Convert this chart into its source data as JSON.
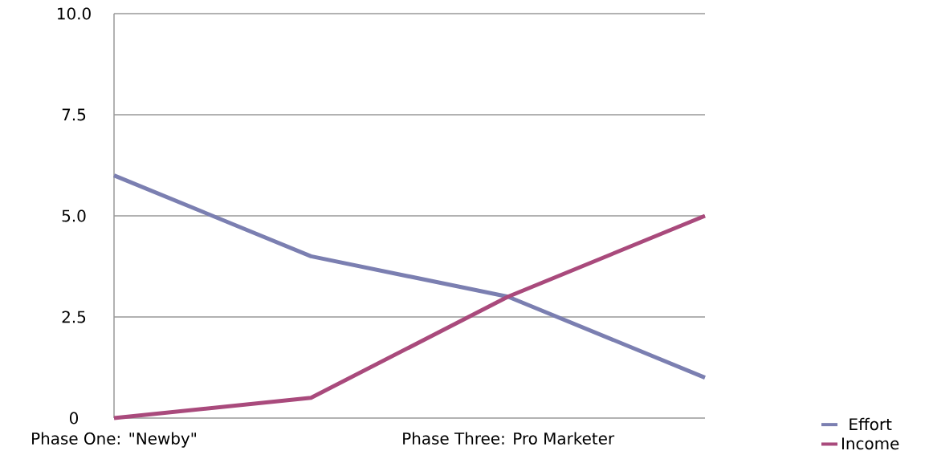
{
  "chart_data": {
    "type": "line",
    "categories": [
      "Phase One: \"Newby\"",
      null,
      "Phase Three: Pro Marketer",
      null
    ],
    "series": [
      {
        "name": "Effort",
        "color": "#7b7fb1",
        "values": [
          6,
          4,
          3,
          1
        ]
      },
      {
        "name": "Income",
        "color": "#a94a7c",
        "values": [
          0,
          0.5,
          3,
          5
        ]
      }
    ],
    "ylim": [
      0,
      10
    ],
    "yticks": [
      {
        "value": 0,
        "label": "0"
      },
      {
        "value": 2.5,
        "label": "2.5"
      },
      {
        "value": 5,
        "label": "5.0"
      },
      {
        "value": 7.5,
        "label": "7.5"
      },
      {
        "value": 10,
        "label": "10.0"
      }
    ],
    "grid": "y",
    "legend": "bottom right",
    "marker": "none",
    "line_style": "solid"
  }
}
